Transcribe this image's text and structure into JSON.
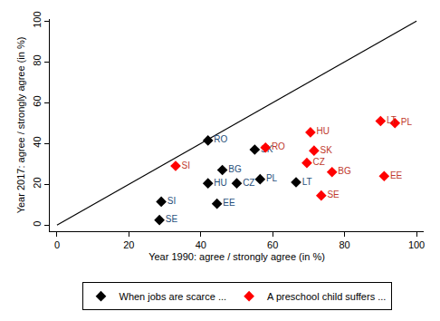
{
  "chart_data": {
    "type": "scatter",
    "xlabel": "Year 1990: agree / strongly agree (in %)",
    "ylabel": "Year 2017: agree / strongly agree (in %)",
    "xlim": [
      -2,
      102
    ],
    "ylim": [
      -3,
      101
    ],
    "xticks": [
      0,
      20,
      40,
      60,
      80,
      100
    ],
    "yticks": [
      0,
      20,
      40,
      60,
      80,
      100
    ],
    "grid": false,
    "legend": "bottom",
    "marker": "diamond",
    "series": [
      {
        "type": "line",
        "line_style": "solid",
        "color": "#000000",
        "x": [
          0,
          100
        ],
        "values": [
          0,
          100
        ]
      },
      {
        "name": "When jobs are scarce ...",
        "color": "#000000",
        "label_color": "#1f4e79",
        "labels": [
          "RO",
          "SK",
          "BG",
          "HU",
          "CZ",
          "PL",
          "LT",
          "SI",
          "EE",
          "SE"
        ],
        "x": [
          42,
          55,
          46,
          42,
          50,
          56.5,
          66.5,
          29,
          44.5,
          28.5
        ],
        "values": [
          41.5,
          37,
          27,
          20.5,
          20.5,
          22.5,
          21,
          11.5,
          10.5,
          2.5
        ]
      },
      {
        "name": "A preschool child suffers ...",
        "color": "#ff0000",
        "label_color": "#c0392b",
        "labels": [
          "SI",
          "RO",
          "HU",
          "SK",
          "CZ",
          "BG",
          "SE",
          "LT",
          "PL",
          "EE"
        ],
        "x": [
          33,
          58,
          70.5,
          71.5,
          69.5,
          76.5,
          73.5,
          90,
          94,
          91
        ],
        "values": [
          29,
          38,
          45.5,
          36.5,
          30.5,
          26,
          14.5,
          51,
          50,
          24
        ]
      }
    ]
  }
}
